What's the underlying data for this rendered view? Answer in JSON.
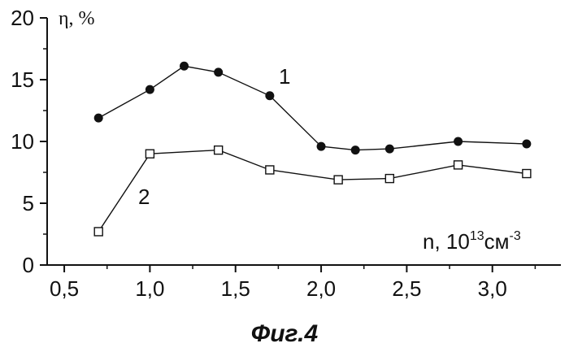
{
  "chart_data": {
    "type": "line",
    "title": "",
    "ylabel": "η, %",
    "xlabel": {
      "base": "n, 10",
      "exp": "13",
      "unit": "см",
      "unit_exp": "-3"
    },
    "xlim": [
      0.4,
      3.4
    ],
    "ylim": [
      0,
      20
    ],
    "xticks": [
      0.5,
      1.0,
      1.5,
      2.0,
      2.5,
      3.0
    ],
    "xtick_labels": [
      "0,5",
      "1,0",
      "1,5",
      "2,0",
      "2,5",
      "3,0"
    ],
    "yticks": [
      0,
      5,
      10,
      15,
      20
    ],
    "ytick_labels": [
      "0",
      "5",
      "10",
      "15",
      "20"
    ],
    "grid": false,
    "series": [
      {
        "name": "1",
        "marker": "filled-circle",
        "color": "#111111",
        "x": [
          0.7,
          1.0,
          1.2,
          1.4,
          1.7,
          2.0,
          2.2,
          2.4,
          2.8,
          3.2
        ],
        "y": [
          11.9,
          14.2,
          16.1,
          15.6,
          13.7,
          9.6,
          9.3,
          9.4,
          10.0,
          9.8
        ]
      },
      {
        "name": "2",
        "marker": "open-square",
        "color": "#111111",
        "x": [
          0.7,
          1.0,
          1.4,
          1.7,
          2.1,
          2.4,
          2.8,
          3.2
        ],
        "y": [
          2.7,
          9.0,
          9.3,
          7.7,
          6.9,
          7.0,
          8.1,
          7.4
        ]
      }
    ]
  },
  "caption": "Фиг.4"
}
